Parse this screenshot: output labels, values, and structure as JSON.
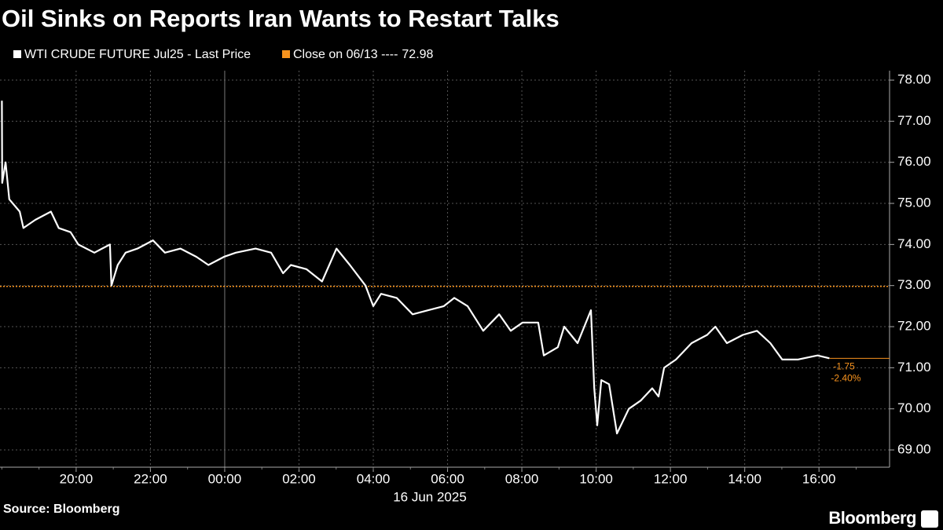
{
  "chart_data": {
    "type": "line",
    "title": "Oil Sinks on Reports Iran Wants to Restart Talks",
    "source": "Source: Bloomberg",
    "brand": "Bloomberg",
    "date_label": "16 Jun 2025",
    "x": [
      -6.0,
      -5.99,
      -5.9,
      -5.8,
      -5.52,
      -5.42,
      -5.1,
      -4.68,
      -4.47,
      -4.15,
      -3.94,
      -3.51,
      -3.09,
      -3.05,
      -2.88,
      -2.67,
      -2.35,
      -1.93,
      -1.61,
      -1.19,
      -0.76,
      -0.44,
      -0.02,
      0.3,
      0.83,
      1.25,
      1.57,
      1.78,
      2.2,
      2.62,
      3.01,
      3.37,
      3.79,
      4.0,
      4.21,
      4.63,
      5.06,
      5.48,
      5.9,
      6.18,
      6.54,
      6.96,
      7.39,
      7.7,
      8.02,
      8.44,
      8.59,
      8.97,
      9.14,
      9.5,
      9.86,
      9.95,
      10.03,
      10.14,
      10.35,
      10.56,
      10.88,
      11.2,
      11.51,
      11.68,
      11.83,
      12.15,
      12.57,
      12.99,
      13.21,
      13.52,
      13.95,
      14.33,
      14.69,
      15.01,
      15.43,
      15.96,
      16.28
    ],
    "series": [
      {
        "name": "WTI CRUDE FUTURE Jul25 - Last Price",
        "color": "#ffffff",
        "values": [
          77.5,
          75.5,
          76.0,
          75.1,
          74.8,
          74.4,
          74.6,
          74.8,
          74.4,
          74.3,
          74.0,
          73.8,
          74.0,
          73.0,
          73.5,
          73.8,
          73.9,
          74.1,
          73.8,
          73.9,
          73.7,
          73.5,
          73.7,
          73.8,
          73.9,
          73.8,
          73.3,
          73.5,
          73.4,
          73.1,
          73.9,
          73.5,
          73.0,
          72.5,
          72.8,
          72.7,
          72.3,
          72.4,
          72.5,
          72.7,
          72.5,
          71.9,
          72.3,
          71.9,
          72.1,
          72.1,
          71.3,
          71.5,
          72.0,
          71.6,
          72.4,
          70.5,
          69.6,
          70.7,
          70.6,
          69.4,
          70.0,
          70.2,
          70.5,
          70.3,
          71.0,
          71.2,
          71.6,
          71.8,
          72.0,
          71.6,
          71.8,
          71.9,
          71.6,
          71.2,
          71.2,
          71.3,
          71.23
        ]
      }
    ],
    "reference_line": {
      "label": "Close on 06/13 ----",
      "value": 72.98,
      "color": "#f7931e"
    },
    "annotations": {
      "change": "-1.75",
      "change_pct": "-2.40%",
      "color": "#f7931e"
    },
    "xlim": [
      -6.05,
      17.9
    ],
    "xticks": [
      {
        "value": -4,
        "label": "20:00"
      },
      {
        "value": -2,
        "label": "22:00"
      },
      {
        "value": 0,
        "label": "00:00"
      },
      {
        "value": 2,
        "label": "02:00"
      },
      {
        "value": 4,
        "label": "04:00"
      },
      {
        "value": 6,
        "label": "06:00"
      },
      {
        "value": 8,
        "label": "08:00"
      },
      {
        "value": 10,
        "label": "10:00"
      },
      {
        "value": 12,
        "label": "12:00"
      },
      {
        "value": 14,
        "label": "14:00"
      },
      {
        "value": 16,
        "label": "16:00"
      }
    ],
    "ylim": [
      68.58,
      78.23
    ],
    "yticks": [
      {
        "value": 69,
        "label": "69.00"
      },
      {
        "value": 70,
        "label": "70.00"
      },
      {
        "value": 71,
        "label": "71.00"
      },
      {
        "value": 72,
        "label": "72.00"
      },
      {
        "value": 73,
        "label": "73.00"
      },
      {
        "value": 74,
        "label": "74.00"
      },
      {
        "value": 75,
        "label": "75.00"
      },
      {
        "value": 76,
        "label": "76.00"
      },
      {
        "value": 77,
        "label": "77.00"
      },
      {
        "value": 78,
        "label": "78.00"
      }
    ],
    "grid": true
  }
}
